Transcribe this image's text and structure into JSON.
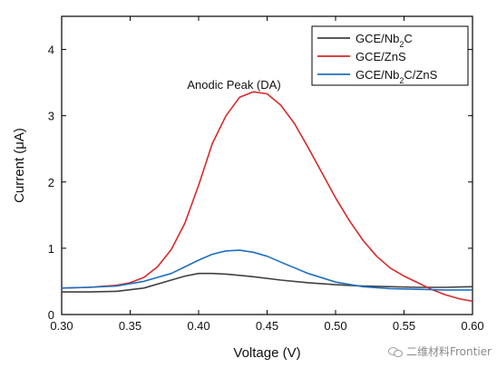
{
  "chart_data": {
    "type": "line",
    "xlabel": "Voltage (V)",
    "ylabel": "Current (μA)",
    "xlim": [
      0.3,
      0.6
    ],
    "ylim": [
      0,
      4.5
    ],
    "x_ticks": [
      "0.30",
      "0.35",
      "0.40",
      "0.45",
      "0.50",
      "0.55",
      "0.60"
    ],
    "y_ticks": [
      "0",
      "1",
      "2",
      "3",
      "4"
    ],
    "legend_position": "top-right",
    "annotation": "Anodic Peak (DA)",
    "series": [
      {
        "name": "GCE/Nb2C",
        "legend_html": "GCE/Nb<tspan baseline-shift='sub' font-size='9'>2</tspan>C",
        "color": "#404040",
        "x": [
          0.3,
          0.32,
          0.34,
          0.36,
          0.38,
          0.39,
          0.4,
          0.41,
          0.42,
          0.44,
          0.46,
          0.48,
          0.5,
          0.52,
          0.54,
          0.56,
          0.58,
          0.6
        ],
        "y": [
          0.34,
          0.34,
          0.35,
          0.4,
          0.52,
          0.58,
          0.62,
          0.62,
          0.61,
          0.57,
          0.52,
          0.48,
          0.45,
          0.43,
          0.42,
          0.41,
          0.41,
          0.42
        ]
      },
      {
        "name": "GCE/ZnS",
        "legend_html": "GCE/ZnS",
        "color": "#d62a2a",
        "x": [
          0.3,
          0.32,
          0.34,
          0.35,
          0.36,
          0.37,
          0.38,
          0.39,
          0.4,
          0.41,
          0.42,
          0.43,
          0.44,
          0.45,
          0.46,
          0.47,
          0.48,
          0.49,
          0.5,
          0.51,
          0.52,
          0.53,
          0.54,
          0.55,
          0.56,
          0.57,
          0.58,
          0.59,
          0.6
        ],
        "y": [
          0.4,
          0.41,
          0.44,
          0.48,
          0.56,
          0.72,
          0.98,
          1.38,
          1.95,
          2.58,
          3.0,
          3.28,
          3.36,
          3.33,
          3.16,
          2.88,
          2.52,
          2.14,
          1.76,
          1.42,
          1.12,
          0.88,
          0.7,
          0.58,
          0.48,
          0.38,
          0.3,
          0.24,
          0.2
        ]
      },
      {
        "name": "GCE/Nb2C/ZnS",
        "legend_html": "GCE/Nb<tspan baseline-shift='sub' font-size='9'>2</tspan>C/ZnS",
        "color": "#1f6fc0",
        "x": [
          0.3,
          0.32,
          0.34,
          0.36,
          0.38,
          0.39,
          0.4,
          0.41,
          0.42,
          0.43,
          0.44,
          0.45,
          0.46,
          0.48,
          0.5,
          0.52,
          0.54,
          0.56,
          0.58,
          0.6
        ],
        "y": [
          0.4,
          0.41,
          0.43,
          0.5,
          0.62,
          0.72,
          0.82,
          0.91,
          0.96,
          0.97,
          0.94,
          0.88,
          0.79,
          0.62,
          0.49,
          0.42,
          0.39,
          0.38,
          0.37,
          0.37
        ]
      }
    ]
  },
  "watermark": {
    "text": "二维材料Frontier",
    "icon": "wechat-icon"
  }
}
